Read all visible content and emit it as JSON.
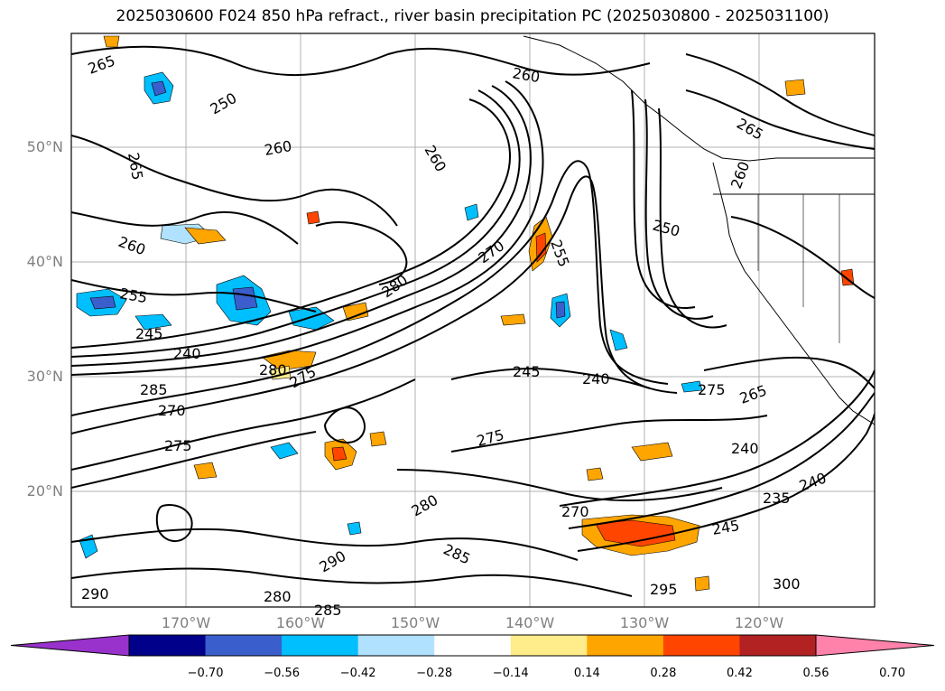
{
  "title": "2025030600 F024 850 hPa refract., river basin precipitation PC (2025030800 - 2025031100)",
  "latitude_labels": [
    "50°N",
    "40°N",
    "30°N",
    "20°N"
  ],
  "longitude_labels": [
    "170°W",
    "160°W",
    "150°W",
    "140°W",
    "130°W",
    "120°W"
  ],
  "contour_labels": [
    "265",
    "260",
    "265",
    "260",
    "260",
    "260",
    "255",
    "245",
    "240",
    "285",
    "280",
    "275",
    "270",
    "270",
    "275",
    "280",
    "255",
    "250",
    "260",
    "265",
    "245",
    "240",
    "275",
    "265",
    "240",
    "235",
    "240",
    "245",
    "250",
    "275",
    "280",
    "285",
    "290",
    "295",
    "300",
    "280",
    "285",
    "290",
    "270"
  ],
  "colorbar": {
    "ticks": [
      "−0.70",
      "−0.56",
      "−0.42",
      "−0.28",
      "−0.14",
      "0.14",
      "0.28",
      "0.42",
      "0.56",
      "0.70"
    ],
    "colors": [
      "#9932cc",
      "#00008b",
      "#3a5fcd",
      "#00bfff",
      "#b0e2ff",
      "#ffffff",
      "#ffec8b",
      "#ffa500",
      "#ff4500",
      "#b22222",
      "#ff82ab"
    ]
  },
  "shading_colors": {
    "neg_strong": "#3a5fcd",
    "neg_mid": "#00bfff",
    "neg_weak": "#b0e2ff",
    "pos_weak": "#ffec8b",
    "pos_mid": "#ffa500",
    "pos_strong": "#ff4500"
  }
}
